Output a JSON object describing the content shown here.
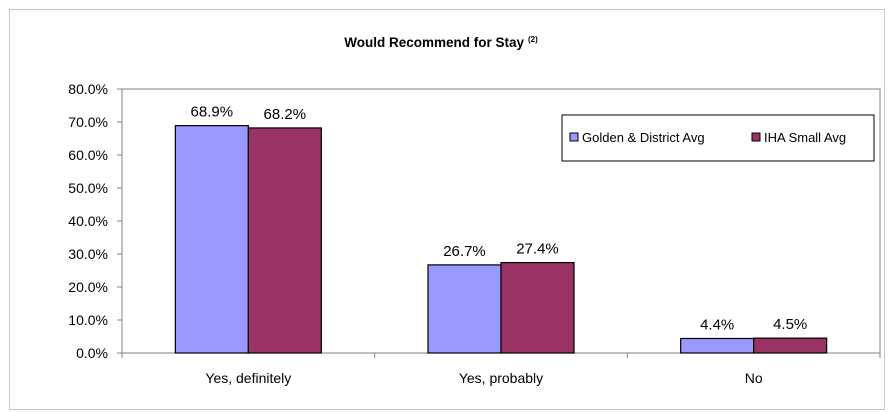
{
  "chart_data": {
    "type": "bar",
    "title": "Would Recommend for Stay",
    "title_superscript": "(2)",
    "categories": [
      "Yes, definitely",
      "Yes, probably",
      "No"
    ],
    "series": [
      {
        "name": "Golden & District Avg",
        "values": [
          68.9,
          26.7,
          4.4
        ],
        "labels": [
          "68.9%",
          "26.7%",
          "4.4%"
        ],
        "color": "#9999ff"
      },
      {
        "name": "IHA Small Avg",
        "values": [
          68.2,
          27.4,
          4.5
        ],
        "labels": [
          "68.2%",
          "27.4%",
          "4.5%"
        ],
        "color": "#993366"
      }
    ],
    "ylim": [
      0,
      80
    ],
    "yticks": [
      0,
      10,
      20,
      30,
      40,
      50,
      60,
      70,
      80
    ],
    "ytick_labels": [
      "0.0%",
      "10.0%",
      "20.0%",
      "30.0%",
      "40.0%",
      "50.0%",
      "60.0%",
      "70.0%",
      "80.0%"
    ],
    "xlabel": "",
    "ylabel": "",
    "grid": false,
    "legend_position": "top-right"
  }
}
